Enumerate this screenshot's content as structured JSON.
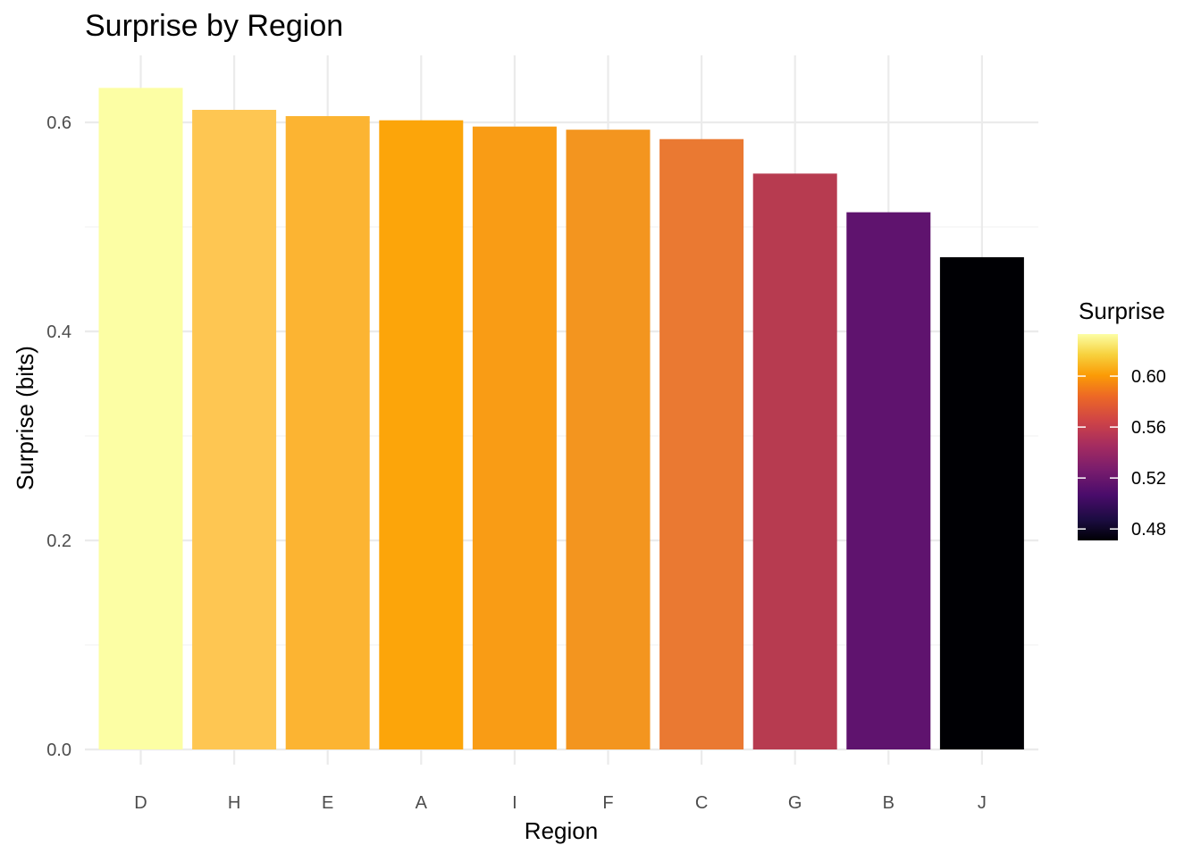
{
  "chart_data": {
    "type": "bar",
    "title": "Surprise by Region",
    "xlabel": "Region",
    "ylabel": "Surprise (bits)",
    "categories": [
      "D",
      "H",
      "E",
      "A",
      "I",
      "F",
      "C",
      "G",
      "B",
      "J"
    ],
    "values": [
      0.633,
      0.612,
      0.606,
      0.602,
      0.596,
      0.593,
      0.584,
      0.551,
      0.514,
      0.471
    ],
    "ylim": [
      0,
      0.65
    ],
    "yticks": [
      0.0,
      0.2,
      0.4,
      0.6
    ],
    "ytick_labels": [
      "0.0",
      "0.2",
      "0.4",
      "0.6"
    ],
    "grid": true,
    "legend": {
      "title": "Surprise",
      "placement": "right",
      "type": "colorbar",
      "palette": "inferno",
      "range": [
        0.471,
        0.633
      ],
      "ticks": [
        0.48,
        0.52,
        0.56,
        0.6
      ],
      "tick_labels": [
        "0.48",
        "0.52",
        "0.56",
        "0.60"
      ]
    },
    "bar_colors": [
      "#fcfea4",
      "#fec652",
      "#fcb432",
      "#fca50a",
      "#f99c15",
      "#f3951f",
      "#ea7932",
      "#b73b50",
      "#5f136e",
      "#000004"
    ]
  }
}
